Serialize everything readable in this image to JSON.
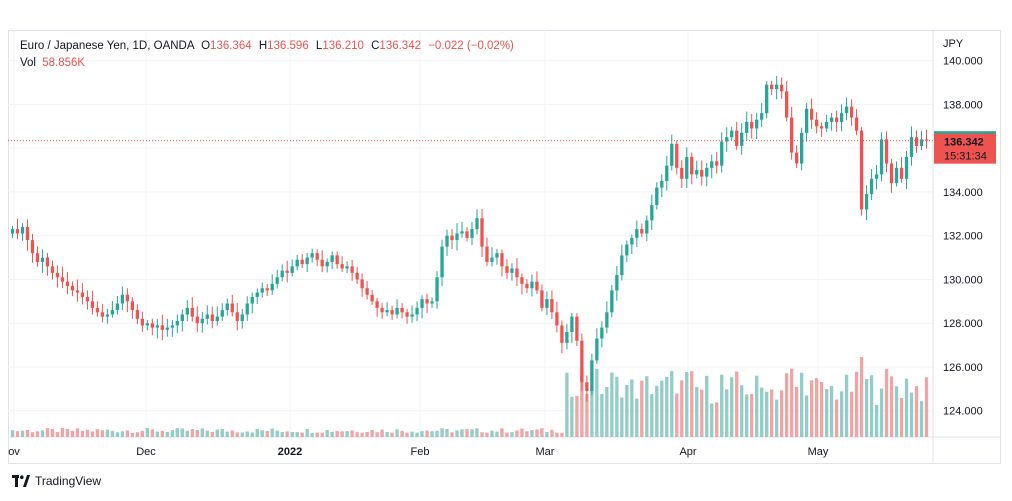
{
  "legend": {
    "symbol": "Euro / Japanese Yen, 1D, OANDA",
    "o_label": "O",
    "o_value": "136.364",
    "h_label": "H",
    "h_value": "136.596",
    "l_label": "L",
    "l_value": "136.210",
    "c_label": "C",
    "c_value": "136.342",
    "change": "−0.022 (−0.02%)",
    "vol_label": "Vol",
    "vol_value": "58.856K"
  },
  "footer": {
    "brand": "TradingView"
  },
  "colors": {
    "up": "#26a69a",
    "down": "#ef5350",
    "up_vol": "#93cdc7",
    "down_vol": "#f1a4a3",
    "grid": "#f0f3fa"
  },
  "chart_data": {
    "type": "candlestick",
    "currency_label": "JPY",
    "x_tick_labels": [
      "ov",
      "Dec",
      "2022",
      "Feb",
      "Mar",
      "Apr",
      "May"
    ],
    "y_ticks": [
      "140.000",
      "138.000",
      "136.000",
      "134.000",
      "132.000",
      "130.000",
      "128.000",
      "126.000",
      "124.000"
    ],
    "ylim": [
      122.8,
      141.4
    ],
    "price_labels": {
      "open": "136.364",
      "close": "136.342",
      "countdown": "15:31:34"
    },
    "closes": [
      132.3,
      132.1,
      132.4,
      131.8,
      131.2,
      130.8,
      131.0,
      130.6,
      130.3,
      130.1,
      129.9,
      129.7,
      129.5,
      129.4,
      129.2,
      129.0,
      128.7,
      128.5,
      128.3,
      128.4,
      128.6,
      128.9,
      129.3,
      129.0,
      128.6,
      128.2,
      127.9,
      128.0,
      127.8,
      127.9,
      127.7,
      127.8,
      127.9,
      128.1,
      128.4,
      128.7,
      128.3,
      128.0,
      128.2,
      128.4,
      128.1,
      128.3,
      128.6,
      128.9,
      128.5,
      128.1,
      128.4,
      128.9,
      129.2,
      129.4,
      129.6,
      129.5,
      129.8,
      130.1,
      130.4,
      130.3,
      130.6,
      130.9,
      130.7,
      131.0,
      131.2,
      130.9,
      130.6,
      130.8,
      131.1,
      130.7,
      130.5,
      130.6,
      130.3,
      130.0,
      129.6,
      129.3,
      129.0,
      128.7,
      128.5,
      128.6,
      128.4,
      128.7,
      128.5,
      128.3,
      128.4,
      128.7,
      129.1,
      128.9,
      129.0,
      130.1,
      131.5,
      132.0,
      131.8,
      132.1,
      132.2,
      131.9,
      132.3,
      132.8,
      131.5,
      130.8,
      131.0,
      131.2,
      130.6,
      130.3,
      130.5,
      130.1,
      129.8,
      129.6,
      129.9,
      129.5,
      128.7,
      129.1,
      128.5,
      127.9,
      127.1,
      127.6,
      128.3,
      127.2,
      125.3,
      124.9,
      126.3,
      127.3,
      127.8,
      128.5,
      129.5,
      130.2,
      131.1,
      131.6,
      131.9,
      132.3,
      132.1,
      132.7,
      133.4,
      134.2,
      134.5,
      135.2,
      136.2,
      135.1,
      134.6,
      135.6,
      134.8,
      135.0,
      134.7,
      135.1,
      135.4,
      135.2,
      136.3,
      136.5,
      136.8,
      136.1,
      136.7,
      137.2,
      136.9,
      137.3,
      137.6,
      138.9,
      138.7,
      138.9,
      138.6,
      137.4,
      135.8,
      135.3,
      136.7,
      137.8,
      137.3,
      137.0,
      136.9,
      137.2,
      137.4,
      137.2,
      137.6,
      137.9,
      137.4,
      136.8,
      133.2,
      133.9,
      134.6,
      134.8,
      136.4,
      135.3,
      134.4,
      135.1,
      134.6,
      135.6,
      136.5,
      136.1,
      136.4,
      136.342
    ]
  }
}
